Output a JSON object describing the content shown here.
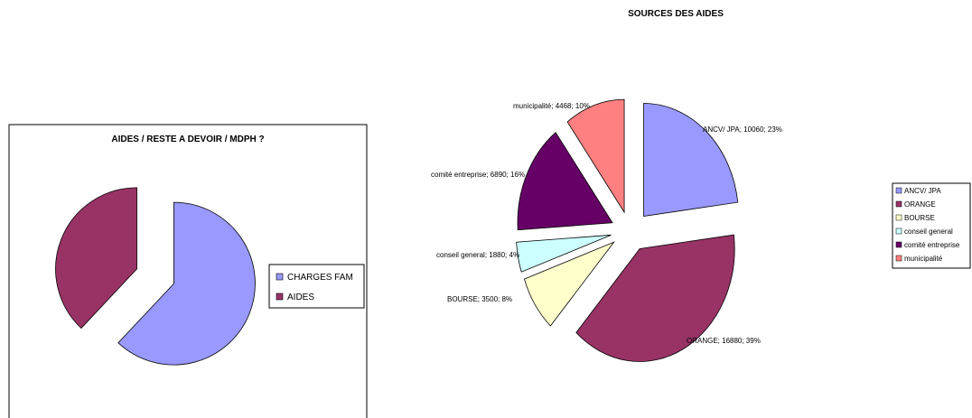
{
  "chart_data": [
    {
      "type": "pie",
      "title": "AIDES / RESTE A DEVOIR / MDPH ?",
      "legend_position": "right",
      "exploded": true,
      "slices": [
        {
          "label": "CHARGES FAM",
          "value": 62,
          "color": "#9999ff"
        },
        {
          "label": "AIDES",
          "value": 38,
          "color": "#993366"
        }
      ]
    },
    {
      "type": "pie",
      "title": "SOURCES DES AIDES",
      "legend_position": "right",
      "exploded": true,
      "slices": [
        {
          "label": "ANCV/ JPA",
          "value": 10060,
          "percent": "23%",
          "data_label": "ANCV/ JPA; 10060; 23%",
          "color": "#9999ff"
        },
        {
          "label": "ORANGE",
          "value": 16880,
          "percent": "39%",
          "data_label": "ORANGE; 16880; 39%",
          "color": "#993366"
        },
        {
          "label": "BOURSE",
          "value": 3500,
          "percent": "8%",
          "data_label": "BOURSE; 3500; 8%",
          "color": "#ffffcc"
        },
        {
          "label": "conseil general",
          "value": 1880,
          "percent": "4%",
          "data_label": "conseil general; 1880; 4%",
          "color": "#ccffff"
        },
        {
          "label": "comité entreprise",
          "value": 6890,
          "percent": "16%",
          "data_label": "comité entreprise; 6890; 16%",
          "color": "#660066"
        },
        {
          "label": "municipalité",
          "value": 4468,
          "percent": "10%",
          "data_label": "municipalité; 4468; 10%",
          "color": "#ff8080"
        }
      ]
    }
  ]
}
